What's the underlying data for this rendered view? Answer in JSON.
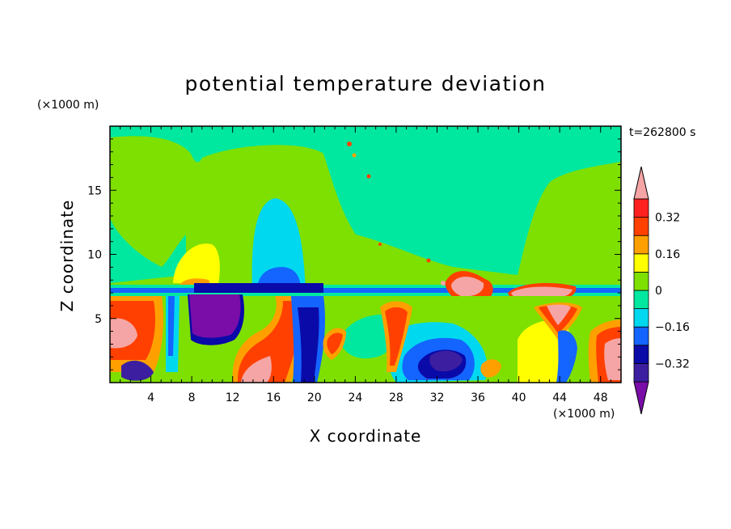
{
  "chart_data": {
    "type": "heatmap",
    "title": "potential temperature deviation",
    "xlabel": "X coordinate",
    "ylabel": "Z coordinate",
    "x_unit": "(×1000 m)",
    "z_unit": "(×1000 m)",
    "time_label": "t=262800 s",
    "xlim": [
      0,
      50
    ],
    "ylim": [
      0,
      20
    ],
    "x_ticks": [
      4,
      8,
      12,
      16,
      20,
      24,
      28,
      32,
      36,
      40,
      44,
      48
    ],
    "y_ticks": [
      5,
      10,
      15
    ],
    "colorbar": {
      "levels": [
        -0.4,
        -0.32,
        -0.24,
        -0.16,
        -0.08,
        0,
        0.08,
        0.16,
        0.24,
        0.32,
        0.4
      ],
      "labels": [
        "0.32",
        "0.16",
        "0",
        "−0.16",
        "−0.32"
      ],
      "label_values": [
        0.32,
        0.16,
        0,
        -0.16,
        -0.32
      ],
      "colors": [
        "#7a0da8",
        "#3c1fa0",
        "#0a0aa8",
        "#1464ff",
        "#00d8f0",
        "#00e8a0",
        "#7ee000",
        "#ffff00",
        "#ffa000",
        "#ff4000",
        "#ff2020",
        "#f5a5a5"
      ]
    }
  }
}
